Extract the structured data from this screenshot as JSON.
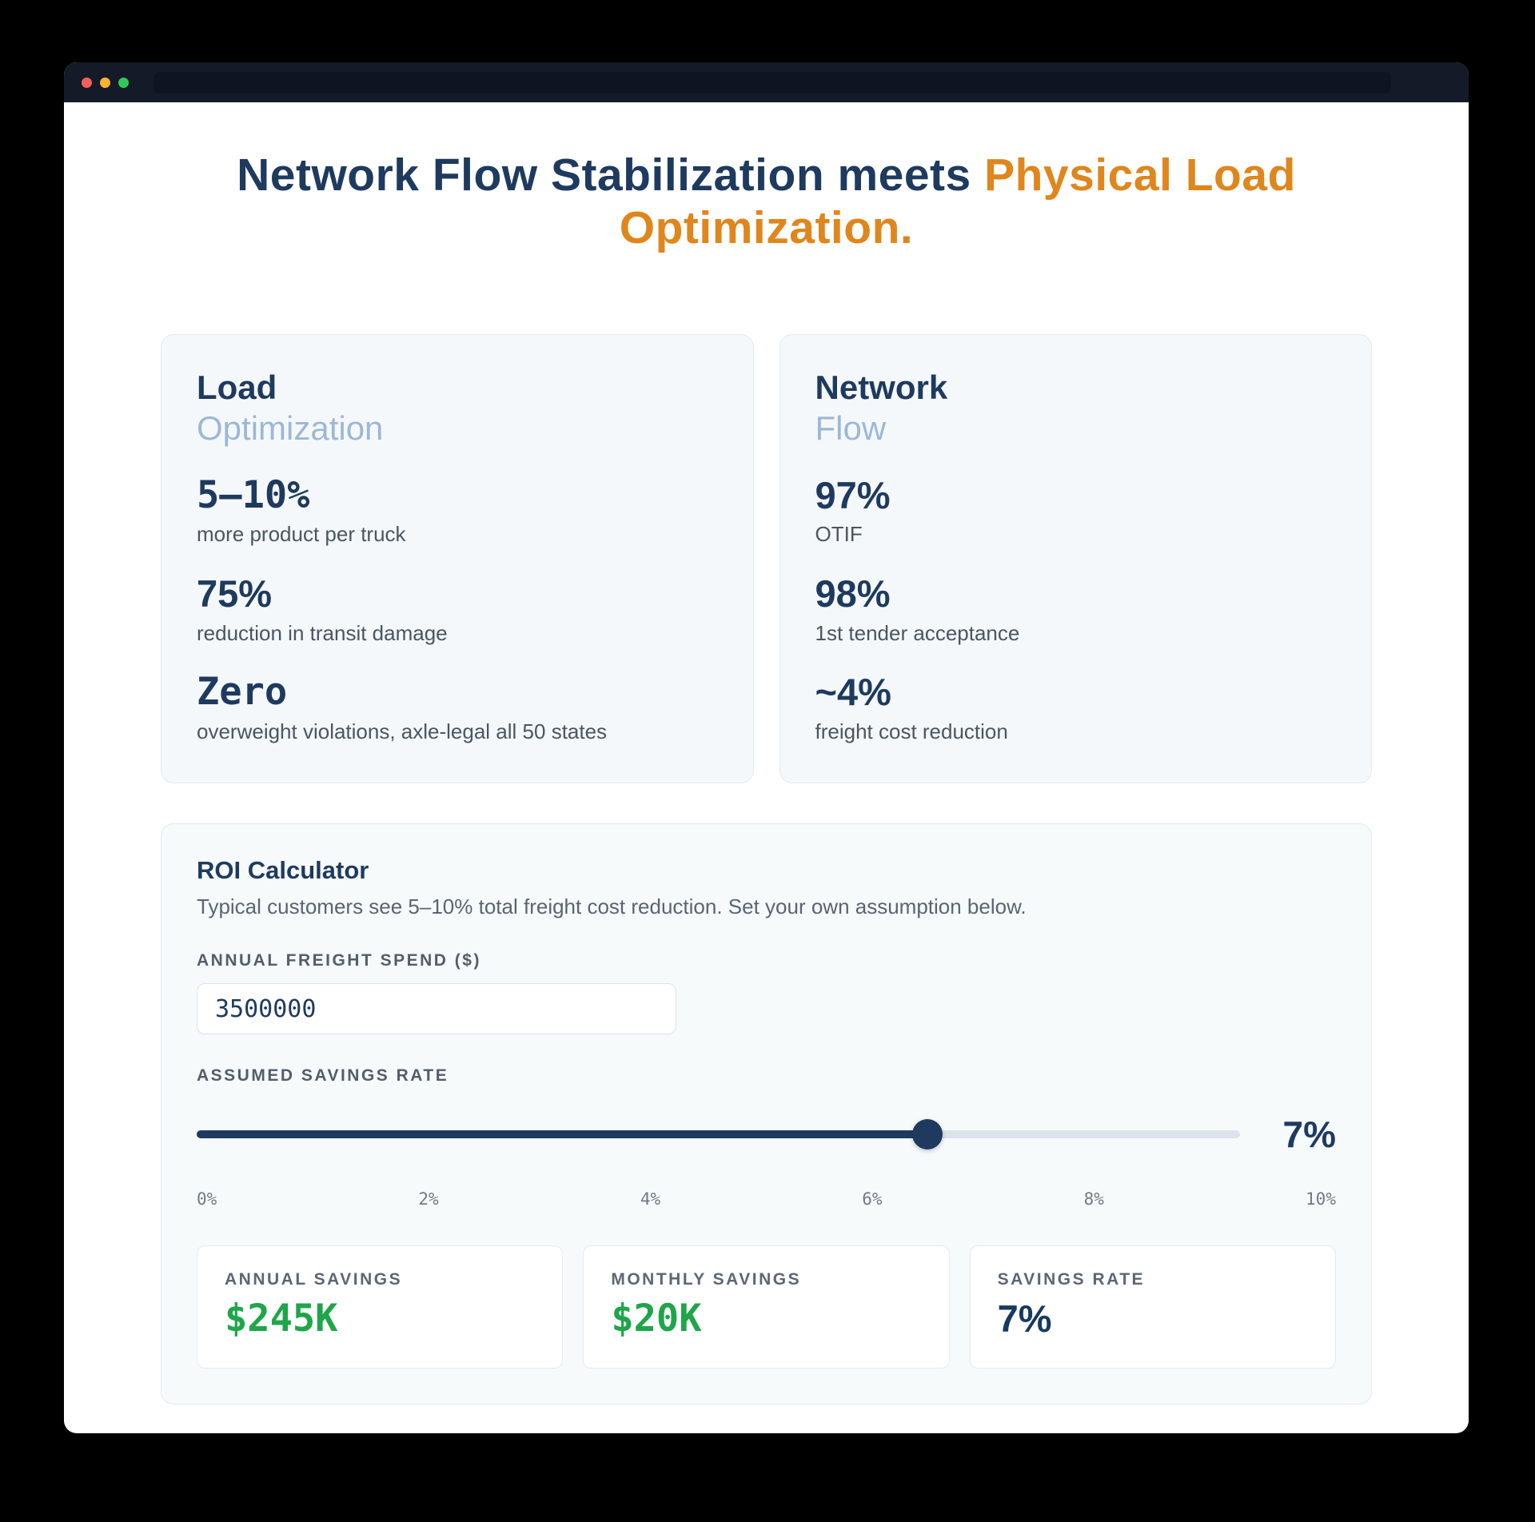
{
  "title": {
    "dark": "Network Flow Stabilization meets ",
    "orange": "Physical Load Optimization."
  },
  "stat_cards": [
    {
      "title_bold": "Load",
      "title_light": "Optimization",
      "stats": [
        {
          "value": "5–10%",
          "caption": "more product per truck"
        },
        {
          "value": "75%",
          "caption": "reduction in transit damage"
        },
        {
          "value": "Zero",
          "caption": "overweight violations, axle-legal all 50 states"
        }
      ]
    },
    {
      "title_bold": "Network",
      "title_light": "Flow",
      "stats": [
        {
          "value": "97%",
          "caption": "OTIF"
        },
        {
          "value": "98%",
          "caption": "1st tender acceptance"
        },
        {
          "value": "~4%",
          "caption": "freight cost reduction"
        }
      ]
    }
  ],
  "roi": {
    "heading": "ROI Calculator",
    "description": "Typical customers see 5–10% total freight cost reduction. Set your own assumption below.",
    "freight_label": "ANNUAL FREIGHT SPEND ($)",
    "freight_value": "3500000",
    "rate_label": "ASSUMED SAVINGS RATE",
    "rate_display": "7%",
    "slider": {
      "fill_percent": 70,
      "min_label": "0%",
      "max_label": "10%"
    },
    "ticks": [
      "0%",
      "2%",
      "4%",
      "6%",
      "8%",
      "10%"
    ],
    "results": [
      {
        "label": "ANNUAL SAVINGS",
        "value": "$245K",
        "color": "green"
      },
      {
        "label": "MONTHLY SAVINGS",
        "value": "$20K",
        "color": "green"
      },
      {
        "label": "SAVINGS RATE",
        "value": "7%",
        "color": "navy"
      }
    ]
  },
  "colors": {
    "navy": "#1e3a5f",
    "orange": "#df861d",
    "green": "#1fa54a",
    "subtitle_blue": "#9cb8d5"
  }
}
